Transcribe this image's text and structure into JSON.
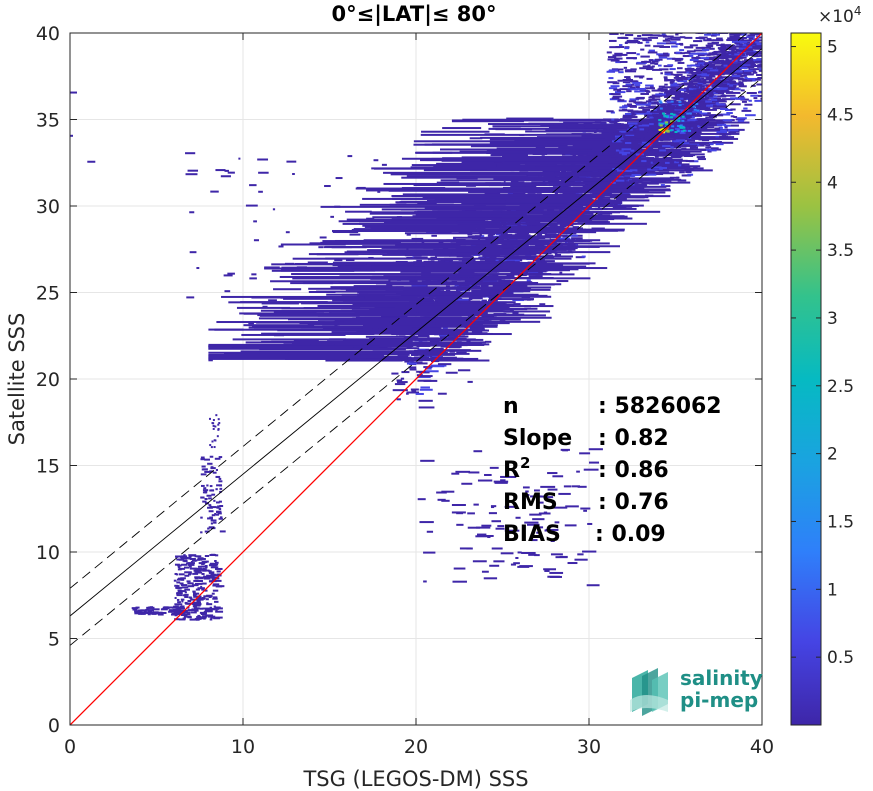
{
  "chart_data": {
    "type": "heatmap",
    "title": "0°≤|LAT|≤ 80°",
    "xlabel": "TSG (LEGOS-DM) SSS",
    "ylabel": "Satellite SSS",
    "xlim": [
      0,
      40
    ],
    "ylim": [
      0,
      40
    ],
    "xticks": [
      "0",
      "10",
      "20",
      "30",
      "40"
    ],
    "yticks": [
      "0",
      "5",
      "10",
      "15",
      "20",
      "25",
      "30",
      "35",
      "40"
    ],
    "grid": true,
    "colorbar": {
      "ticks": [
        "0.5",
        "1",
        "1.5",
        "2",
        "2.5",
        "3",
        "3.5",
        "4",
        "4.5",
        "5"
      ],
      "tick_values": [
        5000,
        10000,
        15000,
        20000,
        25000,
        30000,
        35000,
        40000,
        45000,
        50000
      ],
      "range": [
        0,
        51000
      ],
      "exponent_base": "×10",
      "exponent_power": "4",
      "colormap": "parula"
    },
    "lines": [
      {
        "kind": "one-to-one",
        "color": "#ff0000",
        "x": [
          0,
          40
        ],
        "y": [
          0,
          40
        ]
      },
      {
        "kind": "regression",
        "color": "#000000",
        "style": "solid",
        "slope": 0.82,
        "intercept": 6.3
      },
      {
        "kind": "regression-plus",
        "color": "#000000",
        "style": "dashed",
        "slope": 0.82,
        "intercept": 7.9
      },
      {
        "kind": "regression-minus",
        "color": "#000000",
        "style": "dashed",
        "slope": 0.82,
        "intercept": 4.6
      }
    ],
    "density_peak": {
      "x": 35,
      "y": 35,
      "value": 50000
    },
    "stats": [
      {
        "label": "n",
        "value": ": 5826062"
      },
      {
        "label": "Slope",
        "value": ": 0.82"
      },
      {
        "label": "R",
        "sup": "2",
        "value": ": 0.86"
      },
      {
        "label": "RMS",
        "value": ": 0.76"
      },
      {
        "label": "BIAS",
        "value": ": 0.09"
      }
    ]
  },
  "logo": {
    "line1": "salinity",
    "line2": "pi-mep",
    "color": "#1f8f86"
  }
}
